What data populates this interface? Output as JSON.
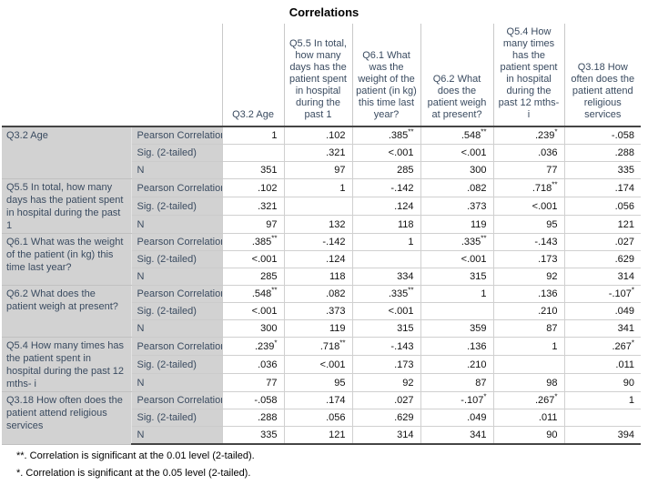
{
  "title": "Correlations",
  "table": {
    "columns": [
      "Q3.2 Age",
      "Q5.5 In total, how many days has the patient spent in hospital during the past 1",
      "Q6.1 What was the weight of the patient (in kg) this time last year?",
      "Q6.2 What does the patient weigh at present?",
      "Q5.4 How many times has the patient spent in hospital during the past 12 mths- i",
      "Q3.18 How often does the patient attend religious services"
    ],
    "stat_labels": [
      "Pearson Correlation",
      "Sig. (2-tailed)",
      "N"
    ],
    "groups": [
      {
        "label": "Q3.2 Age",
        "rows": [
          [
            "1",
            ".102",
            ".385**",
            ".548**",
            ".239*",
            "-.058"
          ],
          [
            "",
            ".321",
            "<.001",
            "<.001",
            ".036",
            ".288"
          ],
          [
            "351",
            "97",
            "285",
            "300",
            "77",
            "335"
          ]
        ]
      },
      {
        "label": "Q5.5 In total, how many days has the patient spent in hospital during the past 1",
        "rows": [
          [
            ".102",
            "1",
            "-.142",
            ".082",
            ".718**",
            ".174"
          ],
          [
            ".321",
            "",
            ".124",
            ".373",
            "<.001",
            ".056"
          ],
          [
            "97",
            "132",
            "118",
            "119",
            "95",
            "121"
          ]
        ]
      },
      {
        "label": "Q6.1 What was the weight of the patient (in kg) this time last year?",
        "rows": [
          [
            ".385**",
            "-.142",
            "1",
            ".335**",
            "-.143",
            ".027"
          ],
          [
            "<.001",
            ".124",
            "",
            "<.001",
            ".173",
            ".629"
          ],
          [
            "285",
            "118",
            "334",
            "315",
            "92",
            "314"
          ]
        ]
      },
      {
        "label": "Q6.2 What does the patient weigh at present?",
        "rows": [
          [
            ".548**",
            ".082",
            ".335**",
            "1",
            ".136",
            "-.107*"
          ],
          [
            "<.001",
            ".373",
            "<.001",
            "",
            ".210",
            ".049"
          ],
          [
            "300",
            "119",
            "315",
            "359",
            "87",
            "341"
          ]
        ]
      },
      {
        "label": "Q5.4 How many times has the patient spent in hospital during the past 12 mths- i",
        "rows": [
          [
            ".239*",
            ".718**",
            "-.143",
            ".136",
            "1",
            ".267*"
          ],
          [
            ".036",
            "<.001",
            ".173",
            ".210",
            "",
            ".011"
          ],
          [
            "77",
            "95",
            "92",
            "87",
            "98",
            "90"
          ]
        ]
      },
      {
        "label": "Q3.18 How often does the patient attend religious services",
        "rows": [
          [
            "-.058",
            ".174",
            ".027",
            "-.107*",
            ".267*",
            "1"
          ],
          [
            ".288",
            ".056",
            ".629",
            ".049",
            ".011",
            ""
          ],
          [
            "335",
            "121",
            "314",
            "341",
            "90",
            "394"
          ]
        ]
      }
    ]
  },
  "footnotes": [
    "**. Correlation is significant at the 0.01 level (2-tailed).",
    "*. Correlation is significant at the 0.05 level (2-tailed)."
  ]
}
